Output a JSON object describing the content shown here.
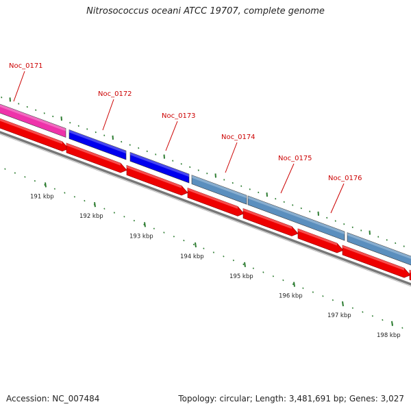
{
  "title": "Nitrosococcus oceani ATCC 19707, complete genome",
  "footer": {
    "accession": "Accession: NC_007484",
    "summary": "Topology: circular; Length: 3,481,691 bp; Genes: 3,027"
  },
  "colors": {
    "label": "#cc0000",
    "tick": "#2e7d32",
    "red_arrow": "#ee0000",
    "backbone": "#777777",
    "magenta": "#ee33aa",
    "blue": "#0000ee",
    "steel": "#5b8fbe"
  },
  "genes": [
    {
      "name": "Noc_0171"
    },
    {
      "name": "Noc_0172"
    },
    {
      "name": "Noc_0173"
    },
    {
      "name": "Noc_0174"
    },
    {
      "name": "Noc_0175"
    },
    {
      "name": "Noc_0176"
    }
  ],
  "kbp_labels": [
    "191 kbp",
    "192 kbp",
    "193 kbp",
    "194 kbp",
    "195 kbp",
    "196 kbp",
    "197 kbp",
    "198 kbp"
  ]
}
